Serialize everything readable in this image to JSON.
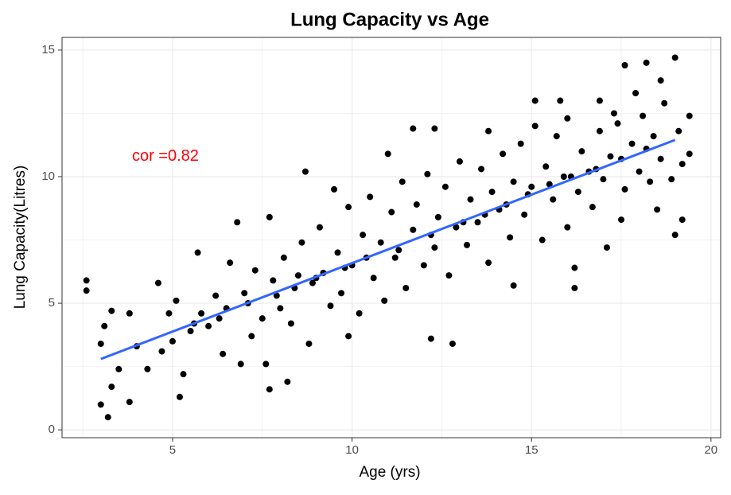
{
  "chart_data": {
    "type": "scatter",
    "title": "Lung Capacity vs Age",
    "x_label": "Age (yrs)",
    "y_label": "Lung Capacity(Litres)",
    "annotation": {
      "text": "cor =0.82",
      "x": 4.8,
      "y": 10.8,
      "color": "#ff0000"
    },
    "xlim": [
      1.92,
      20.27
    ],
    "ylim": [
      -0.31,
      15.5
    ],
    "xticks": [
      5,
      10,
      15,
      20
    ],
    "yticks": [
      0,
      5,
      10,
      15
    ],
    "xminor": [
      2.5,
      7.5,
      12.5,
      17.5
    ],
    "yminor": [
      2.5,
      7.5,
      12.5
    ],
    "grid": true,
    "series": [
      {
        "color": "#000000",
        "x": [
          2.6,
          2.6,
          3.0,
          3.2,
          3.3,
          3.8,
          3.0,
          3.1,
          3.3,
          3.8,
          4.6,
          5.1,
          5.2,
          5.7,
          6.6,
          6.8,
          7.7,
          7.7,
          8.2,
          8.7,
          9.5,
          9.9,
          11.0,
          11.7,
          12.3,
          12.2,
          12.8,
          13.8,
          14.5,
          15.1,
          15.8,
          16.2,
          16.9,
          17.1,
          17.3,
          17.6,
          18.2,
          18.6,
          19.0,
          19.0,
          19.2,
          19.4,
          19.4,
          18.5,
          16.2,
          17.5,
          16.0,
          3.5,
          4.0,
          4.3,
          4.7,
          4.9,
          5.3,
          5.5,
          5.8,
          6.0,
          6.2,
          6.4,
          6.5,
          6.9,
          7.0,
          7.2,
          7.3,
          7.5,
          7.6,
          7.8,
          8.0,
          8.1,
          8.3,
          8.5,
          8.6,
          8.8,
          8.9,
          9.1,
          9.2,
          9.4,
          9.6,
          9.7,
          9.9,
          10.0,
          10.2,
          10.3,
          10.5,
          10.6,
          10.8,
          10.9,
          11.1,
          11.2,
          11.4,
          11.5,
          11.7,
          11.8,
          12.0,
          12.1,
          12.3,
          12.4,
          12.6,
          12.7,
          12.9,
          13.0,
          13.2,
          13.3,
          13.5,
          13.6,
          13.8,
          13.9,
          14.1,
          14.2,
          14.4,
          14.5,
          14.7,
          14.8,
          15.0,
          15.1,
          15.3,
          15.4,
          15.6,
          15.7,
          15.9,
          16.0,
          16.3,
          16.4,
          16.6,
          16.7,
          16.9,
          17.0,
          17.2,
          17.4,
          17.6,
          17.8,
          18.0,
          18.1,
          18.3,
          18.4,
          18.6,
          18.7,
          18.9,
          19.1,
          19.2,
          17.9,
          5.0,
          5.6,
          6.3,
          7.1,
          7.9,
          8.4,
          9.0,
          9.8,
          10.4,
          11.3,
          12.2,
          13.1,
          13.7,
          14.3,
          14.9,
          15.5,
          16.1,
          16.8,
          17.5,
          18.2
        ],
        "values": [
          5.9,
          5.5,
          1.0,
          0.5,
          1.7,
          1.1,
          3.4,
          4.1,
          4.7,
          4.6,
          5.8,
          5.1,
          1.3,
          7.0,
          6.6,
          8.2,
          8.4,
          1.6,
          1.9,
          10.2,
          9.5,
          3.7,
          10.9,
          11.9,
          11.9,
          3.6,
          3.4,
          11.8,
          5.7,
          13.0,
          13.0,
          5.6,
          13.0,
          7.2,
          12.5,
          14.4,
          14.5,
          13.8,
          14.7,
          7.7,
          8.3,
          12.4,
          10.9,
          8.7,
          6.4,
          8.3,
          8.0,
          2.4,
          3.3,
          2.4,
          3.1,
          4.6,
          2.2,
          3.9,
          4.6,
          4.1,
          5.3,
          3.0,
          4.8,
          2.6,
          5.4,
          3.7,
          6.3,
          4.4,
          2.6,
          5.9,
          4.8,
          6.8,
          4.2,
          6.1,
          7.4,
          3.4,
          5.8,
          8.0,
          6.2,
          4.9,
          7.0,
          5.4,
          8.8,
          6.5,
          4.6,
          7.7,
          9.2,
          6.0,
          7.4,
          5.1,
          8.6,
          6.8,
          9.8,
          5.6,
          7.9,
          8.9,
          6.5,
          10.1,
          7.2,
          8.4,
          9.6,
          6.1,
          8.0,
          10.6,
          7.3,
          9.1,
          8.2,
          10.3,
          6.6,
          9.4,
          8.7,
          10.9,
          7.6,
          9.8,
          11.3,
          8.5,
          9.6,
          12.0,
          7.5,
          10.4,
          9.1,
          11.6,
          10.0,
          12.3,
          9.4,
          11.0,
          10.2,
          8.8,
          11.8,
          9.9,
          10.8,
          12.1,
          9.5,
          11.3,
          10.2,
          12.4,
          9.8,
          11.6,
          10.7,
          12.9,
          9.9,
          11.8,
          10.5,
          13.3,
          3.5,
          4.2,
          4.4,
          5.0,
          5.3,
          5.6,
          6.0,
          6.4,
          6.8,
          7.1,
          7.7,
          8.2,
          8.5,
          8.9,
          9.3,
          9.7,
          10.0,
          10.3,
          10.7,
          11.1
        ]
      }
    ],
    "trend_line": {
      "color": "#3366ff",
      "x": [
        3,
        19
      ],
      "values": [
        2.8,
        11.45
      ]
    }
  }
}
